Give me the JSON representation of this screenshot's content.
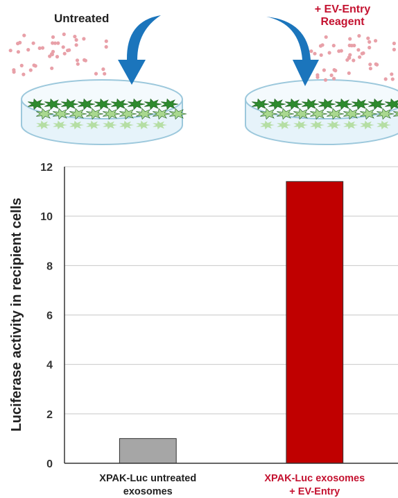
{
  "illustration": {
    "left_label": "Untreated",
    "right_label_line1": "+ EV-Entry",
    "right_label_line2": "Reagent",
    "colors": {
      "arrow": "#1b75bc",
      "dots": "#e8a0a8",
      "cells_dark": "#2e8b2e",
      "cells_light": "#a9d88f",
      "dish": "#cfe6f2",
      "accent_red": "#c41230"
    }
  },
  "chart_data": {
    "type": "bar",
    "ylabel": "Luciferase activity in recipient cells",
    "ylim": [
      0,
      12
    ],
    "yticks": [
      0,
      2,
      4,
      6,
      8,
      10,
      12
    ],
    "grid": true,
    "categories": [
      {
        "line1": "XPAK-Luc untreated",
        "line2": "exosomes",
        "color": "#a6a6a6",
        "label_color": "#222222"
      },
      {
        "line1": "XPAK-Luc exosomes",
        "line2": "+ EV-Entry",
        "color": "#c00000",
        "label_color": "#c41230"
      }
    ],
    "values": [
      1,
      11.4
    ]
  }
}
